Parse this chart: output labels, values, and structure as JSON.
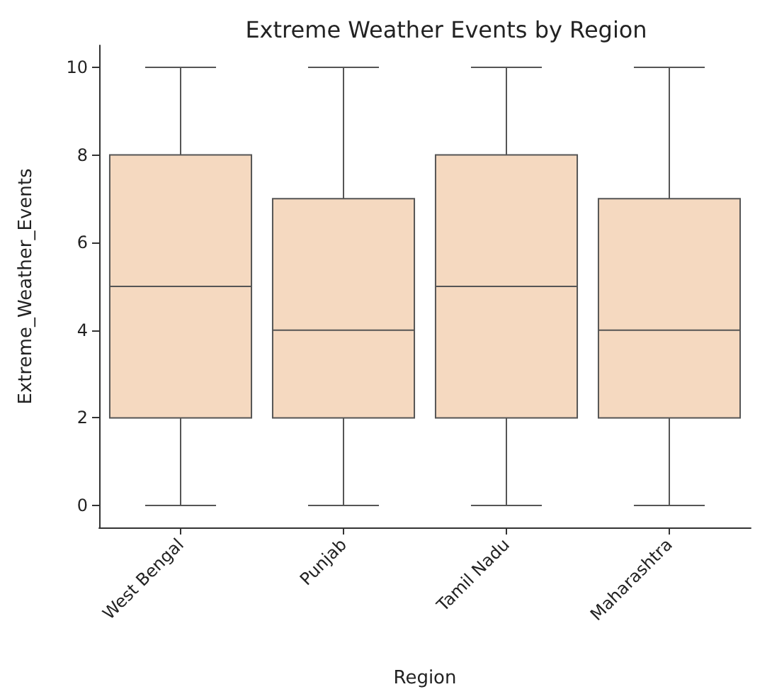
{
  "chart_data": {
    "type": "box",
    "title": "Extreme Weather Events by Region",
    "xlabel": "Region",
    "ylabel": "Extreme_Weather_Events",
    "categories": [
      "West Bengal",
      "Punjab",
      "Tamil Nadu",
      "Maharashtra"
    ],
    "boxes": [
      {
        "low": 0,
        "q1": 2,
        "median": 5,
        "q3": 8,
        "high": 10
      },
      {
        "low": 0,
        "q1": 2,
        "median": 4,
        "q3": 7,
        "high": 10
      },
      {
        "low": 0,
        "q1": 2,
        "median": 5,
        "q3": 8,
        "high": 10
      },
      {
        "low": 0,
        "q1": 2,
        "median": 4,
        "q3": 7,
        "high": 10
      }
    ],
    "color": "#f5d9c0",
    "ylim": [
      -0.5,
      10.5
    ],
    "yticks": [
      0,
      2,
      4,
      6,
      8,
      10
    ],
    "grid": false
  }
}
